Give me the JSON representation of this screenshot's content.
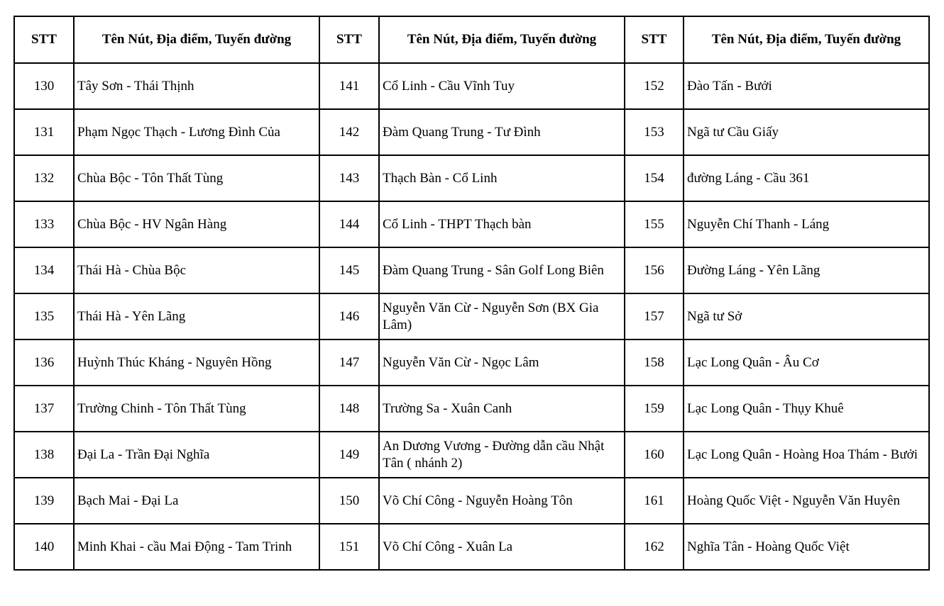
{
  "headers": [
    "STT",
    "Tên Nút, Địa điểm, Tuyến đường",
    "STT",
    "Tên Nút, Địa điểm, Tuyến đường",
    "STT",
    "Tên Nút, Địa điểm, Tuyến đường"
  ],
  "rows": [
    [
      [
        "130",
        "Tây Sơn - Thái Thịnh"
      ],
      [
        "141",
        "Cổ Linh - Cầu Vĩnh Tuy"
      ],
      [
        "152",
        "Đào Tấn - Bưởi"
      ]
    ],
    [
      [
        "131",
        "Phạm Ngọc Thạch - Lương Đình Của"
      ],
      [
        "142",
        "Đàm Quang Trung - Tư Đình"
      ],
      [
        "153",
        "Ngã tư Cầu Giấy"
      ]
    ],
    [
      [
        "132",
        "Chùa Bộc - Tôn Thất Tùng"
      ],
      [
        "143",
        "Thạch Bàn - Cổ Linh"
      ],
      [
        "154",
        "đường Láng - Cầu 361"
      ]
    ],
    [
      [
        "133",
        "Chùa Bộc - HV Ngân Hàng"
      ],
      [
        "144",
        "Cổ Linh - THPT Thạch bàn"
      ],
      [
        "155",
        "Nguyễn Chí Thanh - Láng"
      ]
    ],
    [
      [
        "134",
        "Thái Hà - Chùa Bộc"
      ],
      [
        "145",
        "Đàm Quang Trung - Sân Golf Long Biên"
      ],
      [
        "156",
        "Đường Láng - Yên Lãng"
      ]
    ],
    [
      [
        "135",
        "Thái Hà - Yên Lãng"
      ],
      [
        "146",
        "Nguyễn Văn Cừ - Nguyễn Sơn (BX Gia Lâm)"
      ],
      [
        "157",
        "Ngã tư Sở"
      ]
    ],
    [
      [
        "136",
        "Huỳnh Thúc Kháng - Nguyên Hồng"
      ],
      [
        "147",
        "Nguyễn Văn Cừ - Ngọc Lâm"
      ],
      [
        "158",
        "Lạc Long Quân - Âu Cơ"
      ]
    ],
    [
      [
        "137",
        "Trường Chinh - Tôn Thất Tùng"
      ],
      [
        "148",
        "Trường Sa - Xuân Canh"
      ],
      [
        "159",
        "Lạc Long Quân - Thụy Khuê"
      ]
    ],
    [
      [
        "138",
        "Đại La - Trần Đại Nghĩa"
      ],
      [
        "149",
        "An Dương Vương - Đường dẫn cầu Nhật Tân ( nhánh 2)"
      ],
      [
        "160",
        "Lạc Long Quân - Hoàng Hoa Thám - Bưởi"
      ]
    ],
    [
      [
        "139",
        "Bạch Mai - Đại La"
      ],
      [
        "150",
        "Võ Chí Công - Nguyễn Hoàng Tôn"
      ],
      [
        "161",
        "Hoàng Quốc Việt - Nguyễn Văn Huyên"
      ]
    ],
    [
      [
        "140",
        "Minh Khai - cầu Mai Động - Tam Trinh"
      ],
      [
        "151",
        "Võ Chí Công - Xuân La"
      ],
      [
        "162",
        "Nghĩa Tân - Hoàng Quốc Việt"
      ]
    ]
  ]
}
